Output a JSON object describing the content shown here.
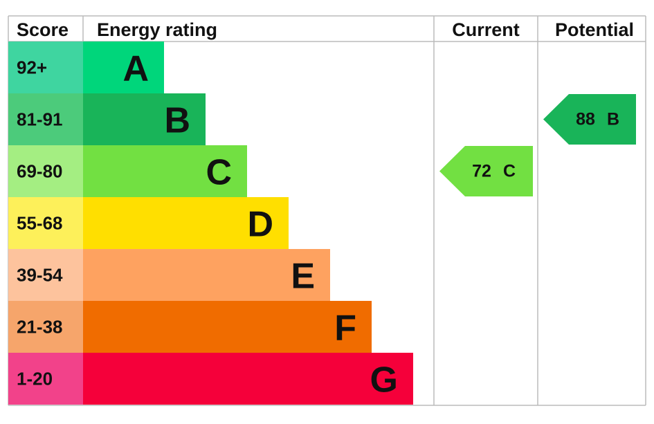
{
  "headers": {
    "score": "Score",
    "rating": "Energy rating",
    "current": "Current",
    "potential": "Potential"
  },
  "bands": [
    {
      "score": "92+",
      "letter": "A",
      "color": "#00d67b",
      "score_color": "#3fd5a0"
    },
    {
      "score": "81-91",
      "letter": "B",
      "color": "#19b459",
      "score_color": "#4ccb7b"
    },
    {
      "score": "69-80",
      "letter": "C",
      "color": "#72e042",
      "score_color": "#a4ee82"
    },
    {
      "score": "55-68",
      "letter": "D",
      "color": "#ffdf00",
      "score_color": "#fdf05a"
    },
    {
      "score": "39-54",
      "letter": "E",
      "color": "#fea260",
      "score_color": "#fdc39d"
    },
    {
      "score": "21-38",
      "letter": "F",
      "color": "#f06c00",
      "score_color": "#f6a56b"
    },
    {
      "score": "1-20",
      "letter": "G",
      "color": "#f5003a",
      "score_color": "#f2428a"
    }
  ],
  "current": {
    "score": 72,
    "letter": "C"
  },
  "potential": {
    "score": 88,
    "letter": "B"
  }
}
